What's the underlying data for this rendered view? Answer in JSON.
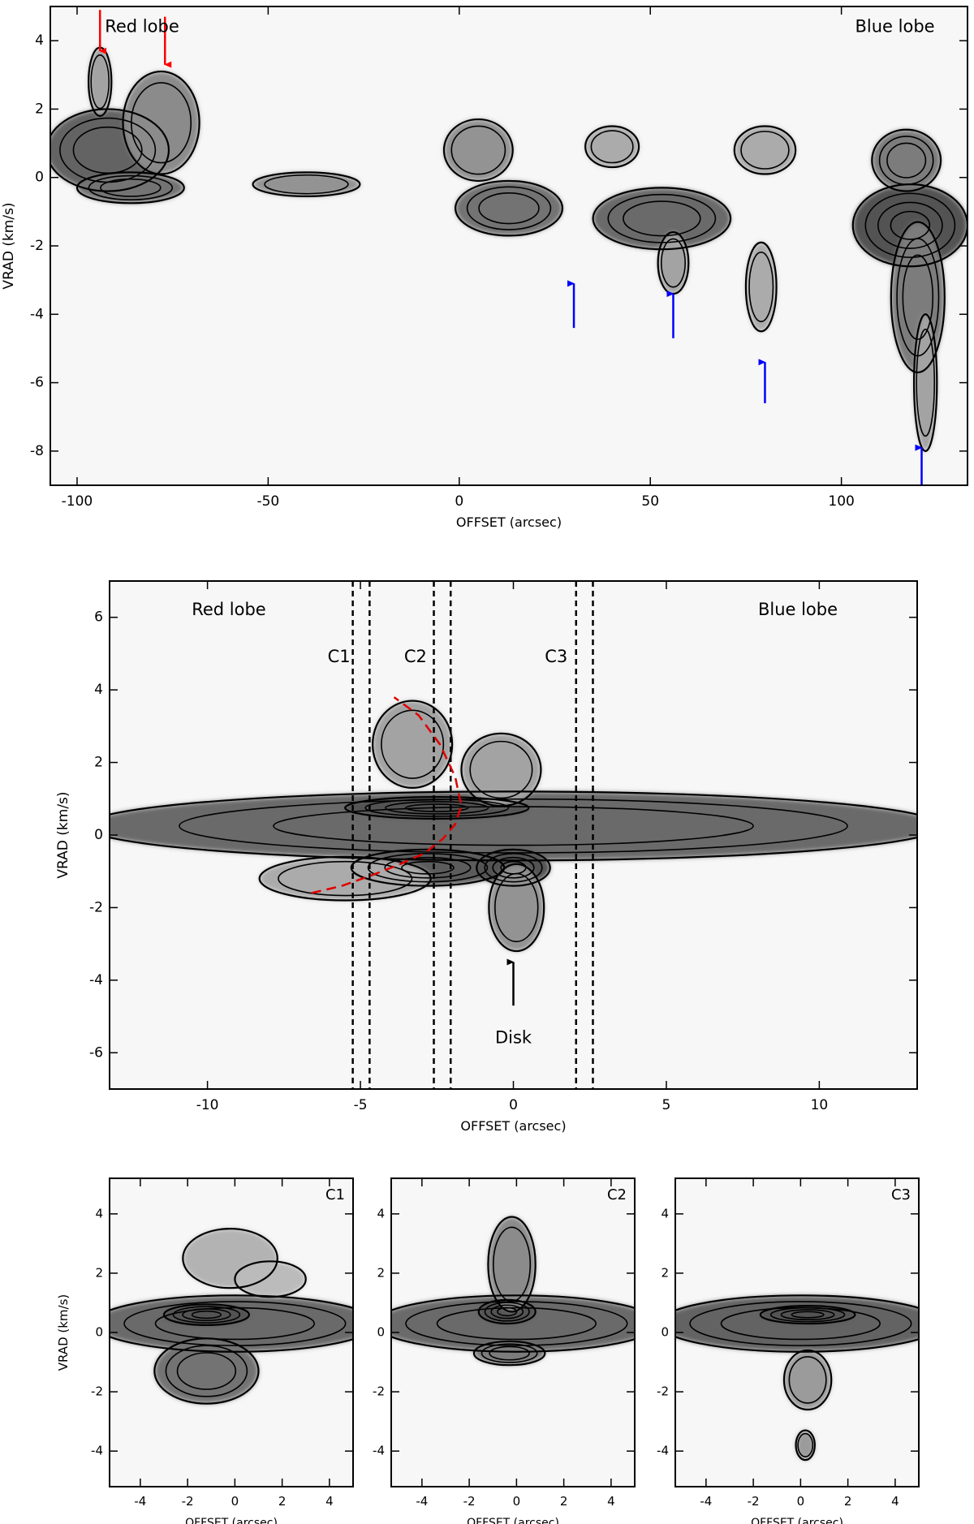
{
  "colors": {
    "background": "#ffffff",
    "emission_gray": "#6a6a6a",
    "contour": "#000000",
    "red_arrow": "#ff0000",
    "blue_arrow": "#0000ff",
    "dashed_curve": "#e00000"
  },
  "chart_data": [
    {
      "id": "panel-top",
      "type": "heatmap",
      "title": "",
      "xlabel": "OFFSET (arcsec)",
      "ylabel": "VRAD (km/s)",
      "xlim": [
        -107,
        133
      ],
      "ylim": [
        -9,
        5
      ],
      "xticks": [
        -100,
        -50,
        0,
        50,
        100
      ],
      "yticks": [
        -8,
        -6,
        -4,
        -2,
        0,
        2,
        4
      ],
      "annotations": [
        {
          "text": "Red lobe",
          "x": -83,
          "y": 4.4
        },
        {
          "text": "Blue lobe",
          "x": 114,
          "y": 4.4
        }
      ],
      "red_arrows": [
        {
          "x": -94,
          "y_from": 4.9,
          "y_to": 3.7
        },
        {
          "x": -77,
          "y_from": 4.7,
          "y_to": 3.3
        }
      ],
      "blue_arrows": [
        {
          "x": 30,
          "y_from": -4.4,
          "y_to": -3.1
        },
        {
          "x": 56,
          "y_from": -4.7,
          "y_to": -3.4
        },
        {
          "x": 80,
          "y_from": -6.6,
          "y_to": -5.4
        },
        {
          "x": 121,
          "y_from": -9,
          "y_to": -7.9
        }
      ],
      "emission_blobs": [
        {
          "cx": -92,
          "cy": 0.8,
          "rx": 16,
          "ry": 1.2,
          "level": 0.85
        },
        {
          "cx": -78,
          "cy": 1.6,
          "rx": 10,
          "ry": 1.5,
          "level": 0.6
        },
        {
          "cx": -86,
          "cy": -0.3,
          "rx": 14,
          "ry": 0.45,
          "level": 0.75
        },
        {
          "cx": -94,
          "cy": 2.8,
          "rx": 3,
          "ry": 1.0,
          "level": 0.45
        },
        {
          "cx": -40,
          "cy": -0.2,
          "rx": 14,
          "ry": 0.35,
          "level": 0.55
        },
        {
          "cx": 5,
          "cy": 0.8,
          "rx": 9,
          "ry": 0.9,
          "level": 0.55
        },
        {
          "cx": 13,
          "cy": -0.9,
          "rx": 14,
          "ry": 0.8,
          "level": 0.75
        },
        {
          "cx": 53,
          "cy": -1.2,
          "rx": 18,
          "ry": 0.9,
          "level": 0.8
        },
        {
          "cx": 56,
          "cy": -2.5,
          "rx": 4,
          "ry": 0.9,
          "level": 0.45
        },
        {
          "cx": 79,
          "cy": -3.2,
          "rx": 4,
          "ry": 1.3,
          "level": 0.4
        },
        {
          "cx": 118,
          "cy": -1.4,
          "rx": 15,
          "ry": 1.2,
          "level": 0.95
        },
        {
          "cx": 120,
          "cy": -3.5,
          "rx": 7,
          "ry": 2.2,
          "level": 0.7
        },
        {
          "cx": 122,
          "cy": -6.0,
          "rx": 3,
          "ry": 2.0,
          "level": 0.45
        },
        {
          "cx": 117,
          "cy": 0.5,
          "rx": 9,
          "ry": 0.9,
          "level": 0.7
        },
        {
          "cx": 80,
          "cy": 0.8,
          "rx": 8,
          "ry": 0.7,
          "level": 0.4
        },
        {
          "cx": 40,
          "cy": 0.9,
          "rx": 7,
          "ry": 0.6,
          "level": 0.4
        }
      ]
    },
    {
      "id": "panel-middle",
      "type": "heatmap",
      "title": "",
      "xlabel": "OFFSET (arcsec)",
      "ylabel": "VRAD (km/s)",
      "xlim": [
        -13.2,
        13.2
      ],
      "ylim": [
        -7,
        7
      ],
      "xticks": [
        -10,
        -5,
        0,
        5,
        10
      ],
      "yticks": [
        -6,
        -4,
        -2,
        0,
        2,
        4,
        6
      ],
      "annotations": [
        {
          "text": "Red lobe",
          "x": -9.3,
          "y": 6.2
        },
        {
          "text": "Blue lobe",
          "x": 9.3,
          "y": 6.2
        },
        {
          "text": "C1",
          "x": -5.7,
          "y": 4.9
        },
        {
          "text": "C2",
          "x": -3.2,
          "y": 4.9
        },
        {
          "text": "C3",
          "x": 1.4,
          "y": 4.9
        },
        {
          "text": "Disk",
          "x": 0.0,
          "y": -5.6
        }
      ],
      "dashed_lines_x": [
        -5.25,
        -4.7,
        -2.6,
        -2.05,
        2.05,
        2.6
      ],
      "disk_arrow": {
        "x": 0.0,
        "y_from": -4.7,
        "y_to": -3.5
      },
      "dashed_curve": {
        "x": [
          -6.6,
          -5.6,
          -4.6,
          -3.7,
          -2.9,
          -2.3,
          -1.9,
          -1.7,
          -1.9,
          -2.4,
          -3.1,
          -3.9
        ],
        "y": [
          -1.6,
          -1.4,
          -1.1,
          -0.8,
          -0.5,
          -0.1,
          0.3,
          0.8,
          1.6,
          2.5,
          3.3,
          3.8
        ]
      },
      "emission_blobs": [
        {
          "cx": 0,
          "cy": 0.25,
          "rx": 14,
          "ry": 0.95,
          "level": 0.8
        },
        {
          "cx": -2.5,
          "cy": 0.75,
          "rx": 3.0,
          "ry": 0.3,
          "level": 0.95
        },
        {
          "cx": -2.8,
          "cy": -0.9,
          "rx": 2.5,
          "ry": 0.5,
          "level": 0.9
        },
        {
          "cx": 0.0,
          "cy": -0.9,
          "rx": 1.2,
          "ry": 0.5,
          "level": 0.95
        },
        {
          "cx": 0.1,
          "cy": -2.0,
          "rx": 0.9,
          "ry": 1.2,
          "level": 0.55
        },
        {
          "cx": -3.3,
          "cy": 2.5,
          "rx": 1.3,
          "ry": 1.2,
          "level": 0.45
        },
        {
          "cx": -0.4,
          "cy": 1.8,
          "rx": 1.3,
          "ry": 1.0,
          "level": 0.45
        },
        {
          "cx": -5.5,
          "cy": -1.2,
          "rx": 2.8,
          "ry": 0.6,
          "level": 0.4
        }
      ]
    },
    {
      "id": "panel-c1",
      "type": "heatmap",
      "title": "",
      "label": "C1",
      "xlabel": "OFFSET (arcsec)",
      "ylabel": "VRAD (km/s)",
      "xlim": [
        -5.3,
        5.0
      ],
      "ylim": [
        -5.2,
        5.2
      ],
      "xticks": [
        -4,
        -2,
        0,
        2,
        4
      ],
      "yticks": [
        -4,
        -2,
        0,
        2,
        4
      ],
      "emission_blobs": [
        {
          "cx": 0,
          "cy": 0.3,
          "rx": 6,
          "ry": 0.95,
          "level": 0.8
        },
        {
          "cx": -1.2,
          "cy": 0.6,
          "rx": 1.8,
          "ry": 0.35,
          "level": 0.95
        },
        {
          "cx": -1.2,
          "cy": -1.3,
          "rx": 2.2,
          "ry": 1.1,
          "level": 0.75
        },
        {
          "cx": -0.2,
          "cy": 2.5,
          "rx": 2.0,
          "ry": 1.0,
          "level": 0.35
        },
        {
          "cx": 1.5,
          "cy": 1.8,
          "rx": 1.5,
          "ry": 0.6,
          "level": 0.3
        }
      ]
    },
    {
      "id": "panel-c2",
      "type": "heatmap",
      "title": "",
      "label": "C2",
      "xlabel": "OFFSET (arcsec)",
      "ylabel": "",
      "xlim": [
        -5.3,
        5.0
      ],
      "ylim": [
        -5.2,
        5.2
      ],
      "xticks": [
        -4,
        -2,
        0,
        2,
        4
      ],
      "yticks": [
        -4,
        -2,
        0,
        2,
        4
      ],
      "emission_blobs": [
        {
          "cx": 0,
          "cy": 0.3,
          "rx": 6,
          "ry": 0.95,
          "level": 0.8
        },
        {
          "cx": -0.4,
          "cy": 0.7,
          "rx": 1.2,
          "ry": 0.4,
          "level": 0.95
        },
        {
          "cx": -0.2,
          "cy": 2.3,
          "rx": 1.0,
          "ry": 1.6,
          "level": 0.6
        },
        {
          "cx": -0.3,
          "cy": -0.7,
          "rx": 1.5,
          "ry": 0.4,
          "level": 0.7
        }
      ]
    },
    {
      "id": "panel-c3",
      "type": "heatmap",
      "title": "",
      "label": "C3",
      "xlabel": "OFFSET (arcsec)",
      "ylabel": "",
      "xlim": [
        -5.3,
        5.0
      ],
      "ylim": [
        -5.2,
        5.2
      ],
      "xticks": [
        -4,
        -2,
        0,
        2,
        4
      ],
      "yticks": [
        -4,
        -2,
        0,
        2,
        4
      ],
      "emission_blobs": [
        {
          "cx": 0,
          "cy": 0.3,
          "rx": 6,
          "ry": 0.95,
          "level": 0.85
        },
        {
          "cx": 0.3,
          "cy": 0.6,
          "rx": 2.0,
          "ry": 0.3,
          "level": 0.95
        },
        {
          "cx": 0.3,
          "cy": -1.6,
          "rx": 1.0,
          "ry": 1.0,
          "level": 0.5
        },
        {
          "cx": 0.2,
          "cy": -3.8,
          "rx": 0.4,
          "ry": 0.5,
          "level": 0.5
        }
      ]
    }
  ]
}
